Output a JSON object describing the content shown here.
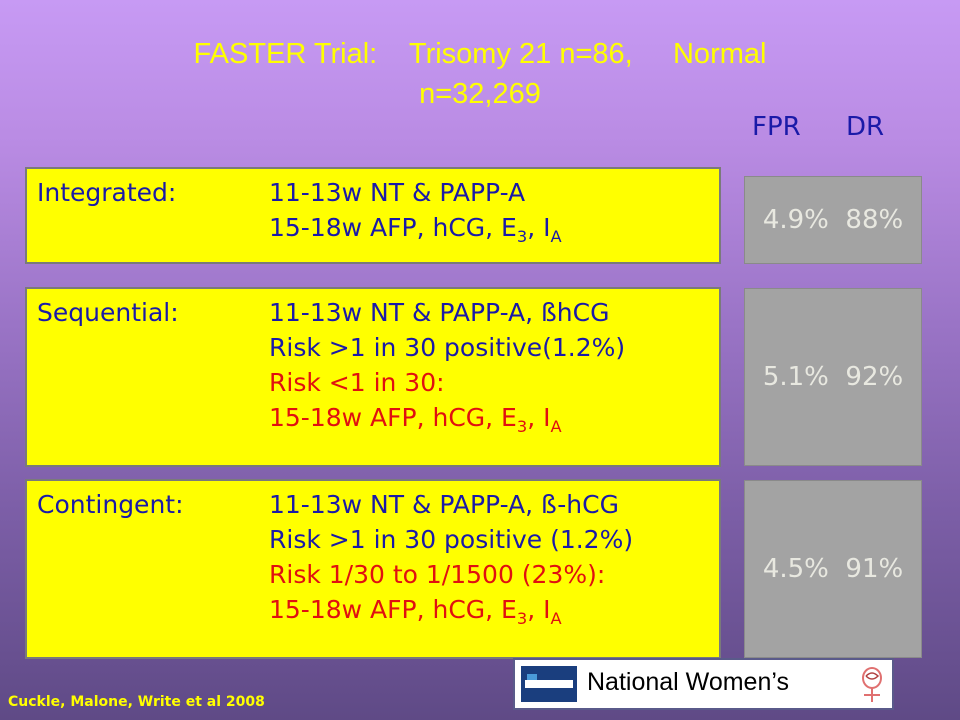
{
  "title": {
    "line1": "FASTER Trial:    Trisomy 21 n=86,     Normal",
    "line2": "n=32,269"
  },
  "columns": {
    "fpr": "FPR",
    "dr": "DR"
  },
  "rows": [
    {
      "label": "Integrated:",
      "lines": [
        {
          "text": "11-13w NT & PAPP-A",
          "color": "blue"
        },
        {
          "text": "15-18w AFP, hCG, E",
          "sub1": "3",
          "text2": ", I",
          "sub2": "A",
          "color": "blue"
        }
      ],
      "result": "4.9%  88%"
    },
    {
      "label": "Sequential:",
      "lines": [
        {
          "text": "11-13w NT & PAPP-A, ßhCG",
          "color": "blue"
        },
        {
          "text": "Risk >1 in 30 positive(1.2%)",
          "color": "blue"
        },
        {
          "text": "Risk <1 in 30:",
          "color": "red"
        },
        {
          "text": "15-18w AFP, hCG, E",
          "sub1": "3",
          "text2": ", I",
          "sub2": "A",
          "color": "red"
        }
      ],
      "result": "5.1%  92%"
    },
    {
      "label": "Contingent:",
      "lines": [
        {
          "text": "11-13w NT & PAPP-A, ß-hCG",
          "color": "blue"
        },
        {
          "text": "Risk >1 in 30 positive (1.2%)",
          "color": "blue"
        },
        {
          "text": "Risk 1/30 to 1/1500 (23%):",
          "color": "red"
        },
        {
          "text": "15-18w AFP, hCG, E",
          "sub1": "3",
          "text2": ", I",
          "sub2": "A",
          "color": "red"
        }
      ],
      "result": "4.5%  91%"
    }
  ],
  "citation": "Cuckle, Malone, Write et al 2008",
  "logo": {
    "text": "National Women’s",
    "left_icon": "auckland-logo-icon",
    "right_icon": "womens-symbol-icon"
  },
  "colors": {
    "title": "#ffff00",
    "blue_text": "#1a1aa8",
    "red_text": "#e01010",
    "box_bg": "#ffff00",
    "result_bg": "#a3a3a3"
  }
}
